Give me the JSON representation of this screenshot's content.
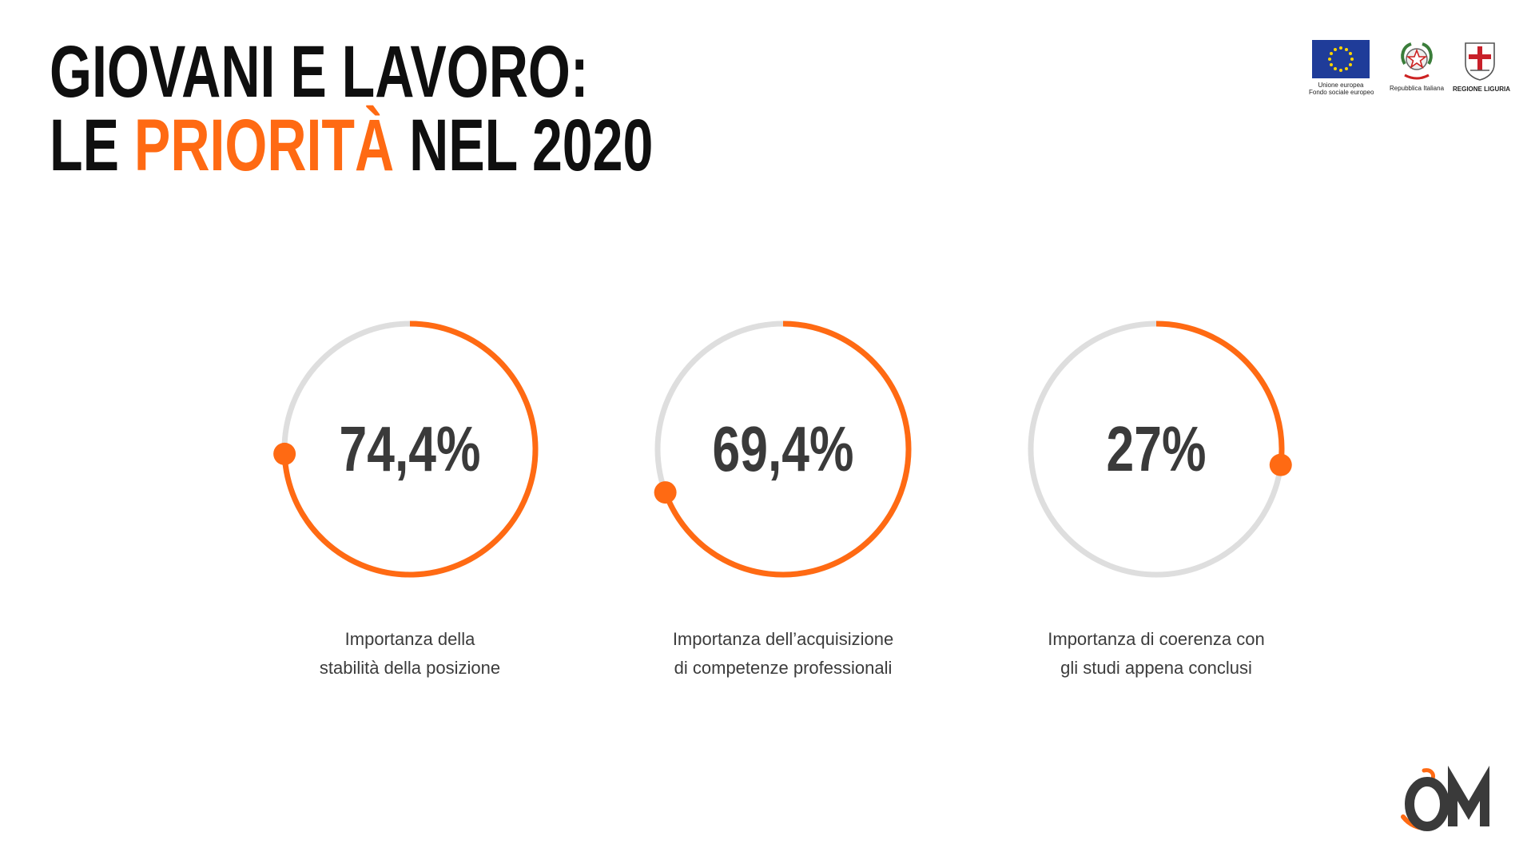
{
  "title": {
    "line1": "GIOVANI E LAVORO:",
    "line2_prefix": "LE ",
    "line2_accent": "PRIORITÀ",
    "line2_suffix": " NEL 2020"
  },
  "logos": {
    "eu_caption_1": "Unione europea",
    "eu_caption_2": "Fondo sociale europeo",
    "italy_caption": "Repubblica Italiana",
    "liguria_caption": "REGIONE LIGURIA"
  },
  "colors": {
    "accent": "#ff6a13",
    "track": "#dedede",
    "text": "#3a3a3a"
  },
  "chart_data": {
    "type": "pie",
    "series": [
      {
        "label": "74,4%",
        "value": 74.4,
        "caption_1": "Importanza della",
        "caption_2": "stabilità della posizione"
      },
      {
        "label": "69,4%",
        "value": 69.4,
        "caption_1": "Importanza dell’acquisizione",
        "caption_2": "di competenze professionali"
      },
      {
        "label": "27%",
        "value": 27,
        "caption_1": "Importanza di coerenza con",
        "caption_2": "gli studi appena conclusi"
      }
    ]
  }
}
